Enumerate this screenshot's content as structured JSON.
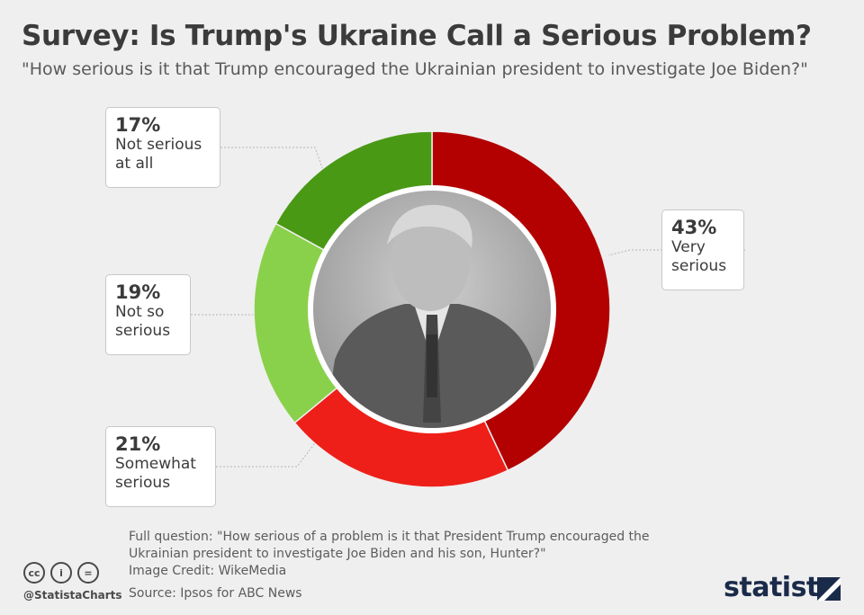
{
  "title": "Survey: Is Trump's Ukraine Call a Serious Problem?",
  "subtitle": "\"How serious is it that Trump encouraged the Ukrainian president to investigate Joe Biden?\"",
  "chart_data": {
    "type": "pie",
    "categories": [
      "Very serious",
      "Somewhat serious",
      "Not so serious",
      "Not serious at all"
    ],
    "values": [
      43,
      21,
      19,
      17
    ],
    "unit": "%",
    "colors": [
      "#b30000",
      "#ee1f19",
      "#8ad14b",
      "#4a9915"
    ],
    "labels": [
      {
        "pct": "43%",
        "lines": [
          "Very",
          "serious"
        ]
      },
      {
        "pct": "21%",
        "lines": [
          "Somewhat",
          "serious"
        ]
      },
      {
        "pct": "19%",
        "lines": [
          "Not so",
          "serious"
        ]
      },
      {
        "pct": "17%",
        "lines": [
          "Not serious",
          "at all"
        ]
      }
    ],
    "donut": true,
    "center_image": "Trump photo (grayscale)"
  },
  "footer": {
    "note_lines": [
      "Full question: \"How serious of a problem is it that President Trump encouraged the",
      "Ukrainian president to investigate Joe Biden and his son, Hunter?\"",
      "Image Credit: WikeMedia"
    ],
    "source": "Source: Ipsos for ABC News",
    "handle": "@StatistaCharts",
    "brand": "statista",
    "cc_icons": [
      "cc-icon",
      "by-icon",
      "nd-icon"
    ],
    "cc_glyphs": [
      "cc",
      "i",
      "="
    ]
  }
}
